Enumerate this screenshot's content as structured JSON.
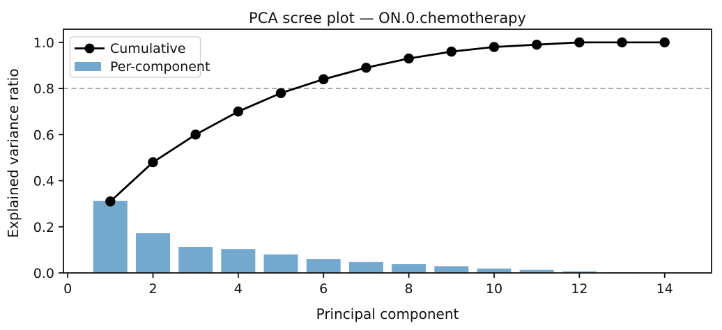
{
  "chart_data": {
    "type": "combo",
    "title": "PCA scree plot — ON.0.chemotherapy",
    "xlabel": "Principal component",
    "ylabel": "Explained variance ratio",
    "x": [
      1,
      2,
      3,
      4,
      5,
      6,
      7,
      8,
      9,
      10,
      11,
      12,
      13,
      14
    ],
    "series": [
      {
        "name": "Cumulative",
        "type": "line",
        "color": "#000000",
        "marker": "circle",
        "values": [
          0.31,
          0.48,
          0.6,
          0.7,
          0.78,
          0.84,
          0.89,
          0.93,
          0.96,
          0.98,
          0.99,
          1.0,
          1.0,
          1.0
        ]
      },
      {
        "name": "Per-component",
        "type": "bar",
        "color": "#74a9cf",
        "values": [
          0.312,
          0.172,
          0.112,
          0.103,
          0.08,
          0.06,
          0.048,
          0.039,
          0.029,
          0.019,
          0.013,
          0.007,
          0.003,
          0.002
        ]
      }
    ],
    "threshold_line": {
      "y": 0.8,
      "color": "#999999",
      "style": "dashed"
    },
    "xticks": [
      0,
      2,
      4,
      6,
      8,
      10,
      12,
      14
    ],
    "yticks": [
      0.0,
      0.2,
      0.4,
      0.6,
      0.8,
      1.0
    ],
    "xlim": [
      -0.1,
      15.1
    ],
    "ylim": [
      0,
      1.057
    ],
    "grid": false,
    "legend": {
      "position": "upper-left",
      "entries": [
        "Cumulative",
        "Per-component"
      ]
    },
    "colors": {
      "axes": "#111111",
      "text": "#111111",
      "bar": "#74a9cf",
      "line": "#000000",
      "threshold": "#999999",
      "legend_border": "#cccccc",
      "background": "#ffffff"
    }
  }
}
